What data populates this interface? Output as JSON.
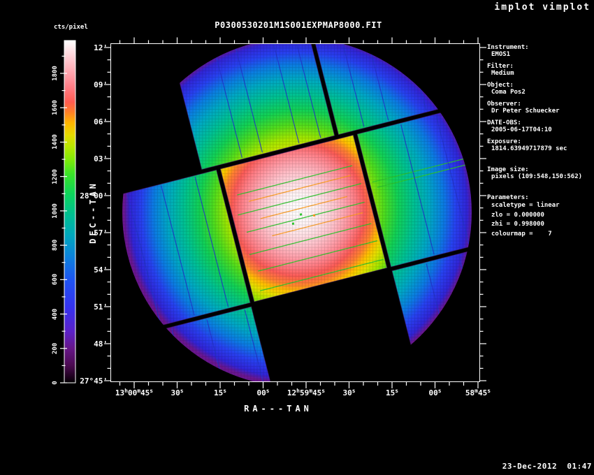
{
  "window": {
    "app_title": "implot vimplot",
    "footer_timestamp": "23-Dec-2012  01:47"
  },
  "plot": {
    "title": "P0300530201M1S001EXPMAP8000.FIT",
    "x_axis": {
      "label": "RA---TAN",
      "tick_labels": [
        "13^h^00^m^45^s",
        "30^s",
        "15^s",
        "00^s",
        "12^h^59^m^45^s",
        "30^s",
        "15^s",
        "00^s",
        "58^m^45^s"
      ]
    },
    "y_axis": {
      "label": "DEC--TAN",
      "tick_labels": [
        "12'",
        "09'",
        "06'",
        "03'",
        "28°00'",
        "57'",
        "54'",
        "51'",
        "48'",
        "27°45'"
      ]
    }
  },
  "colorbar": {
    "label": "cts/pixel",
    "tick_values": [
      0,
      200,
      400,
      600,
      800,
      1000,
      1200,
      1400,
      1600,
      1800
    ],
    "min": 0,
    "max": 1980
  },
  "info_panel": [
    {
      "label": "Instrument:",
      "lines": [
        "EMOS1"
      ]
    },
    {
      "label": "Filter:",
      "lines": [
        "Medium"
      ]
    },
    {
      "label": "Object:",
      "lines": [
        "Coma Pos2"
      ]
    },
    {
      "label": "Observer:",
      "lines": [
        "Dr Peter Schuecker"
      ]
    },
    {
      "label": "DATE-OBS:",
      "lines": [
        "2005-06-17T04:10"
      ]
    },
    {
      "label": "Exposure:",
      "lines": [
        "1814.63949717879 sec"
      ]
    },
    {
      "label": "Image size:",
      "lines": [
        "pixels (109:548,150:562)"
      ]
    },
    {
      "label": "Parameters:",
      "lines": [
        "scaletype = linear",
        "zlo = 0.000000",
        "zhi = 0.998000",
        "colourmap =    7"
      ]
    }
  ],
  "colors": {
    "background": "#000000",
    "foreground": "#ffffff",
    "colormap_low_to_high": [
      {
        "t": 0.0,
        "c": "#000000"
      },
      {
        "t": 0.015,
        "c": "#1a001a"
      },
      {
        "t": 0.05,
        "c": "#4b0a50"
      },
      {
        "t": 0.1,
        "c": "#661687"
      },
      {
        "t": 0.15,
        "c": "#5b21c8"
      },
      {
        "t": 0.22,
        "c": "#3632ee"
      },
      {
        "t": 0.3,
        "c": "#1e54f2"
      },
      {
        "t": 0.37,
        "c": "#0c83da"
      },
      {
        "t": 0.43,
        "c": "#00a7bd"
      },
      {
        "t": 0.49,
        "c": "#00bf92"
      },
      {
        "t": 0.55,
        "c": "#0cd45c"
      },
      {
        "t": 0.61,
        "c": "#3ae328"
      },
      {
        "t": 0.65,
        "c": "#7dea0a"
      },
      {
        "t": 0.69,
        "c": "#b8e800"
      },
      {
        "t": 0.725,
        "c": "#e6d900"
      },
      {
        "t": 0.76,
        "c": "#ffb400"
      },
      {
        "t": 0.79,
        "c": "#ff8026"
      },
      {
        "t": 0.82,
        "c": "#ff5c51"
      },
      {
        "t": 0.865,
        "c": "#ff7e87"
      },
      {
        "t": 0.91,
        "c": "#ffa9b2"
      },
      {
        "t": 0.955,
        "c": "#ffd3d9"
      },
      {
        "t": 1.0,
        "c": "#ffffff"
      }
    ],
    "fov_gradient_central": [
      {
        "r": 0.0,
        "c": "#ffffff"
      },
      {
        "r": 0.09,
        "c": "#fff3f5"
      },
      {
        "r": 0.15,
        "c": "#ffdfe4"
      },
      {
        "r": 0.21,
        "c": "#ffc4cd"
      },
      {
        "r": 0.27,
        "c": "#ffa2ad"
      },
      {
        "r": 0.33,
        "c": "#ff7d85"
      },
      {
        "r": 0.38,
        "c": "#fb5b57"
      },
      {
        "r": 0.43,
        "c": "#ff8130"
      },
      {
        "r": 0.47,
        "c": "#ffc000"
      },
      {
        "r": 0.51,
        "c": "#e3e000"
      },
      {
        "r": 0.56,
        "c": "#9fe600"
      },
      {
        "r": 0.62,
        "c": "#44da22"
      },
      {
        "r": 0.75,
        "c": "#00cc55"
      },
      {
        "r": 1.0,
        "c": "#00bb77"
      }
    ],
    "fov_gradient_peripheral": [
      {
        "r": 0.0,
        "c": "#ffe800"
      },
      {
        "r": 0.33,
        "c": "#d8e400"
      },
      {
        "r": 0.41,
        "c": "#a4e600"
      },
      {
        "r": 0.49,
        "c": "#4edc1e"
      },
      {
        "r": 0.57,
        "c": "#12d155"
      },
      {
        "r": 0.66,
        "c": "#00c193"
      },
      {
        "r": 0.75,
        "c": "#00a8c4"
      },
      {
        "r": 0.83,
        "c": "#0b7ce2"
      },
      {
        "r": 0.9,
        "c": "#2741f0"
      },
      {
        "r": 0.965,
        "c": "#3124d6"
      },
      {
        "r": 1.0,
        "c": "#6a1690"
      }
    ],
    "artifact_green": "#2ec82e",
    "artifact_orange": "#ff9d1e",
    "artifact_blue": "#2334cc",
    "chip_seam_purple": "#4a1a78"
  },
  "chart_data": {
    "type": "heatmap",
    "title": "P0300530201M1S001EXPMAP8000.FIT",
    "xlabel": "RA---TAN",
    "ylabel": "DEC--TAN",
    "x_tick_labels": [
      "13h00m45s",
      "30s",
      "15s",
      "00s",
      "12h59m45s",
      "30s",
      "15s",
      "00s",
      "58m45s"
    ],
    "y_tick_labels": [
      "12'",
      "09'",
      "06'",
      "03'",
      "28°00'",
      "57'",
      "54'",
      "51'",
      "48'",
      "27°45'"
    ],
    "x_axis_note": "Right ascension, decreasing left to right from 13h00m45s to 12h58m45s, major ticks every 15s",
    "y_axis_note": "Declination from 27°45' to 28°12', major ticks every 3'",
    "colorbar": {
      "label": "cts/pixel",
      "range": [
        0,
        1980
      ],
      "tick_step": 200
    },
    "peak_cts_per_pixel": 1815,
    "radial_profile_cts_vs_arcmin": [
      {
        "r_arcmin": 0,
        "cts": 1815
      },
      {
        "r_arcmin": 2,
        "cts": 1650
      },
      {
        "r_arcmin": 4,
        "cts": 1400
      },
      {
        "r_arcmin": 5,
        "cts": 1200
      },
      {
        "r_arcmin": 6,
        "cts": 1000
      },
      {
        "r_arcmin": 8,
        "cts": 780
      },
      {
        "r_arcmin": 10,
        "cts": 540
      },
      {
        "r_arcmin": 12,
        "cts": 360
      },
      {
        "r_arcmin": 14,
        "cts": 150
      }
    ],
    "detector_rotation_deg": 14.3,
    "ccds": {
      "total": 7,
      "layout": "central square CCD surrounded by 6 peripheral CCDs, black gaps between chips",
      "missing": "bottom-centre CCD shown as black (no exposure)"
    },
    "notes": "XMM-Newton EMOS1 exposure map: circular field of view ~28 arcmin across, exposure peaks white at boresight and falls through pink/red/orange/yellow/green/cyan/blue to purple at the rim; bright bad rows streak the central CCD, dark bad columns cross the peripheral CCDs"
  }
}
